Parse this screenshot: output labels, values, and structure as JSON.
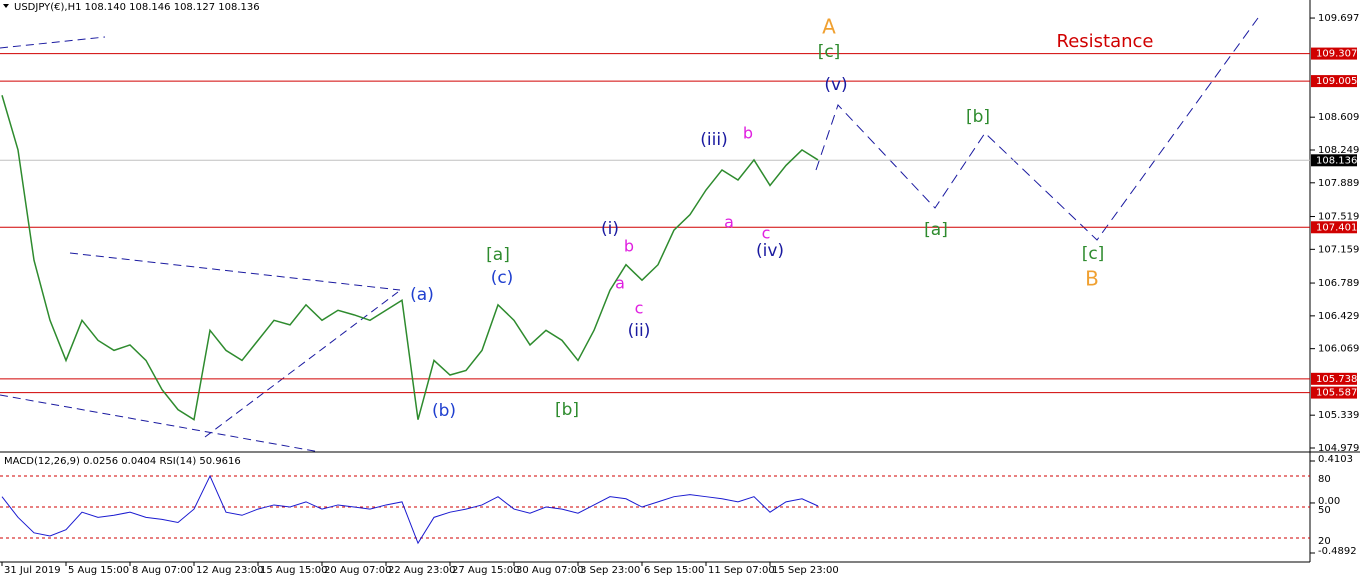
{
  "chart_data": [
    {
      "type": "line",
      "title": "USDJPY(€),H1  108.140 108.146 108.127 108.136",
      "categories": [
        "31 Jul 2019",
        null,
        null,
        null,
        "5 Aug 15:00",
        null,
        null,
        null,
        "8 Aug 07:00",
        null,
        null,
        null,
        "12 Aug 23:00",
        null,
        null,
        null,
        "15 Aug 15:00",
        null,
        null,
        null,
        "20 Aug 07:00",
        null,
        null,
        null,
        "22 Aug 23:00",
        null,
        null,
        null,
        "27 Aug 15:00",
        null,
        null,
        null,
        "30 Aug 07:00",
        null,
        null,
        null,
        "3 Sep 23:00",
        null,
        null,
        null,
        "6 Sep 15:00",
        null,
        null,
        null,
        "11 Sep 07:00",
        null,
        null,
        null,
        "15 Sep 23:00",
        null,
        null,
        null
      ],
      "values": [
        108.85,
        108.25,
        107.04,
        106.38,
        105.94,
        106.38,
        106.16,
        106.05,
        106.11,
        105.94,
        105.62,
        105.4,
        105.29,
        106.27,
        106.05,
        105.94,
        106.16,
        106.38,
        106.33,
        106.55,
        106.38,
        106.49,
        106.44,
        106.38,
        106.49,
        106.6,
        105.29,
        105.94,
        105.78,
        105.83,
        106.05,
        106.55,
        106.38,
        106.11,
        106.27,
        106.16,
        105.94,
        106.27,
        106.71,
        106.99,
        106.82,
        106.99,
        107.37,
        107.54,
        107.81,
        108.03,
        107.92,
        108.14,
        107.86,
        108.08,
        108.25,
        108.14
      ],
      "color": "#2e8b2e",
      "ylim": [
        104.935,
        109.895
      ],
      "yticks": [
        109.697,
        108.609,
        108.249,
        107.889,
        107.519,
        107.159,
        106.789,
        106.429,
        106.069,
        105.339,
        104.979
      ],
      "levels": [
        109.307,
        109.005,
        107.401,
        105.738,
        105.587
      ],
      "level_color": "#d00000",
      "current_price": 108.136,
      "wave_labels": [
        {
          "text": "A",
          "color": "#f0a030"
        },
        {
          "text": "[c]",
          "color": "#2e8b2e"
        },
        {
          "text": "(v)",
          "color": "#1a1aa0"
        },
        {
          "text": "Resistance",
          "color": "#d00000"
        },
        {
          "text": "[b]",
          "color": "#2e8b2e"
        },
        {
          "text": "[a]",
          "color": "#2e8b2e"
        },
        {
          "text": "[c]",
          "color": "#2e8b2e"
        },
        {
          "text": "B",
          "color": "#f0a030"
        },
        {
          "text": "(iii)",
          "color": "#1a1aa0"
        },
        {
          "text": "b",
          "color": "#e020e0"
        },
        {
          "text": "a",
          "color": "#e020e0"
        },
        {
          "text": "c",
          "color": "#e020e0"
        },
        {
          "text": "(iv)",
          "color": "#1a1aa0"
        },
        {
          "text": "(i)",
          "color": "#1a1aa0"
        },
        {
          "text": "b",
          "color": "#e020e0"
        },
        {
          "text": "a",
          "color": "#e020e0"
        },
        {
          "text": "c",
          "color": "#e020e0"
        },
        {
          "text": "(ii)",
          "color": "#1a1aa0"
        },
        {
          "text": "[a]",
          "color": "#2e8b2e"
        },
        {
          "text": "(c)",
          "color": "#1f3fcf"
        },
        {
          "text": "(a)",
          "color": "#1f3fcf"
        },
        {
          "text": "(b)",
          "color": "#1f3fcf"
        },
        {
          "text": "[b]",
          "color": "#2e8b2e"
        }
      ]
    },
    {
      "type": "line",
      "title": "MACD(12,26,9) 0.0256 0.0404 RSI(14) 50.9616",
      "values": [
        60,
        40,
        25,
        22,
        28,
        45,
        40,
        42,
        45,
        40,
        38,
        35,
        48,
        80,
        45,
        42,
        48,
        52,
        50,
        55,
        48,
        52,
        50,
        48,
        52,
        55,
        15,
        40,
        45,
        48,
        52,
        60,
        48,
        44,
        50,
        48,
        44,
        52,
        60,
        58,
        50,
        55,
        60,
        62,
        60,
        58,
        55,
        60,
        45,
        55,
        58,
        51
      ],
      "color": "#1a1ad0",
      "ylim": [
        -1.3,
        102.3
      ],
      "yticks": [
        80,
        50,
        20
      ],
      "y2lim": [
        -0.5576,
        0.4885
      ],
      "y2ticks": [
        0.4103,
        {
          "value": 0,
          "label": "0.00"
        },
        -0.4892
      ],
      "grid_color": "#d00000"
    }
  ]
}
